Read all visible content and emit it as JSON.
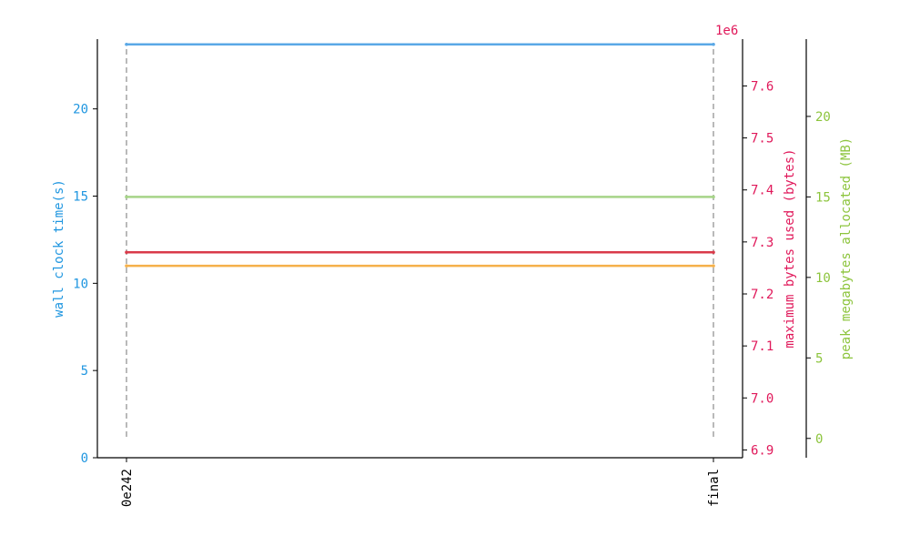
{
  "colors": {
    "axis": "#000000",
    "wall_clock": "#1f96e0",
    "max_bytes": "#e0185a",
    "peak_mb": "#8cc43c",
    "connector": "#a8a8a8",
    "wall_line": "#5aa8e6",
    "bytes_line": "#d93a4a",
    "mb_line": "#a6d488",
    "extra_line": "#f5b04a"
  },
  "chart_data": {
    "type": "line",
    "categories": [
      "0e242",
      "final"
    ],
    "axes": {
      "left": {
        "label": "wall clock time(s)",
        "ylim": [
          0,
          24
        ],
        "ticks": [
          0,
          5,
          10,
          15,
          20
        ],
        "tick_labels": [
          "0",
          "5",
          "10",
          "15",
          "20"
        ]
      },
      "right": {
        "label": "maximum bytes used (bytes)",
        "offset_label": "1e6",
        "ylim": [
          6.885,
          7.69
        ],
        "ticks": [
          6.9,
          7.0,
          7.1,
          7.2,
          7.3,
          7.4,
          7.5,
          7.6
        ],
        "tick_labels": [
          "6.9",
          "7.0",
          "7.1",
          "7.2",
          "7.3",
          "7.4",
          "7.5",
          "7.6"
        ]
      },
      "right2": {
        "label": "peak megabytes allocated (MB)",
        "ylim": [
          -1.2,
          24.8
        ],
        "ticks": [
          0,
          5,
          10,
          15,
          20
        ],
        "tick_labels": [
          "0",
          "5",
          "10",
          "15",
          "20"
        ]
      }
    },
    "series": [
      {
        "axis": "left",
        "color_key": "wall_line",
        "values": [
          23.7,
          23.7
        ]
      },
      {
        "axis": "right",
        "color_key": "bytes_line",
        "values": [
          7.28,
          7.28
        ]
      },
      {
        "axis": "right2",
        "color_key": "mb_line",
        "values": [
          15.0,
          15.0
        ]
      },
      {
        "axis": "left",
        "color_key": "extra_line",
        "values": [
          11.0,
          11.0
        ]
      }
    ],
    "connectors": {
      "from": 1.2,
      "to": 23.7,
      "axis": "left"
    },
    "grid": false,
    "legend": "none"
  }
}
